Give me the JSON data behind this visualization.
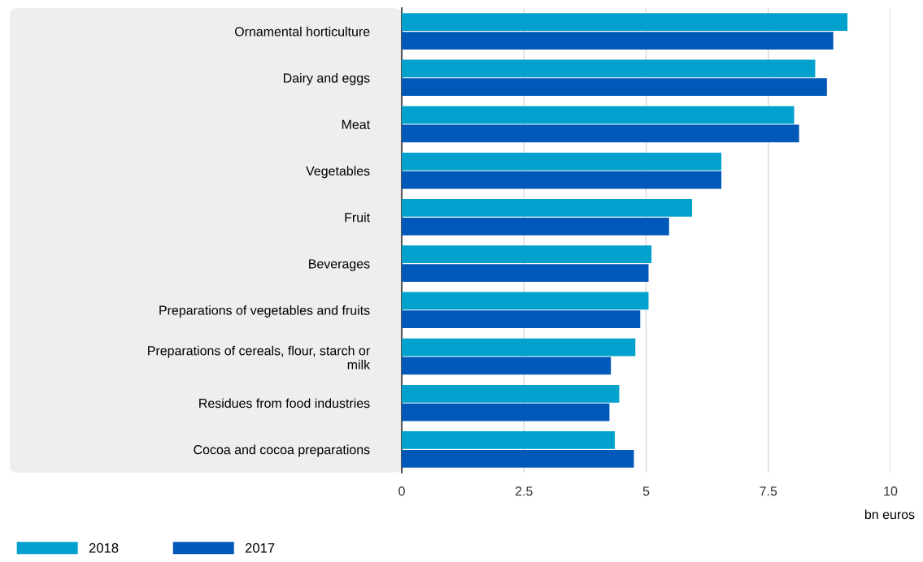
{
  "chart_data": {
    "type": "bar",
    "orientation": "horizontal",
    "xlabel": "bn euros",
    "categories": [
      "Ornamental horticulture",
      "Dairy and eggs",
      "Meat",
      "Vegetables",
      "Fruit",
      "Beverages",
      "Preparations of vegetables and fruits",
      "Preparations of cereals, flour, starch or\nmilk",
      "Residues from food industries",
      "Cocoa and cocoa preparations"
    ],
    "series": [
      {
        "name": "2018",
        "color": "#00a1cd",
        "values": [
          9.12,
          8.46,
          8.03,
          6.54,
          5.94,
          5.11,
          5.05,
          4.78,
          4.45,
          4.36
        ]
      },
      {
        "name": "2017",
        "color": "#0058b8",
        "values": [
          8.83,
          8.7,
          8.13,
          6.54,
          5.47,
          5.05,
          4.88,
          4.28,
          4.25,
          4.75
        ]
      }
    ],
    "xlim": [
      0,
      10
    ],
    "xticks": [
      0,
      2.5,
      5,
      7.5,
      10
    ],
    "grid": "x",
    "legend": "bottom left"
  }
}
